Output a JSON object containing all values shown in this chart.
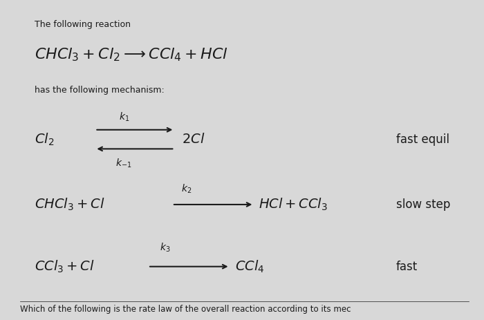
{
  "background_color": "#d8d8d8",
  "text_color": "#1a1a1a",
  "title_small": "The following reaction",
  "main_reaction": "$CHCl_3 + Cl_2 \\longrightarrow CCl_4 + HCl$",
  "mechanism_label": "has the following mechanism:",
  "step1_left": "$Cl_2$",
  "step1_right": "$2Cl$",
  "step1_k_top": "$k_1$",
  "step1_k_bot": "$k_{-1}$",
  "step1_label": "fast equil",
  "step2_left": "$CHCl_3 + Cl$",
  "step2_right": "$HCl + CCl_3$",
  "step2_k": "$k_2$",
  "step2_label": "slow step",
  "step3_left": "$CCl_3 + Cl$",
  "step3_right": "$CCl_4$",
  "step3_k": "$k_3$",
  "step3_label": "fast",
  "footer": "Which of the following is the rate law of the overall reaction according to its mec",
  "fig_width": 7.0,
  "fig_height": 4.63,
  "dpi": 100
}
